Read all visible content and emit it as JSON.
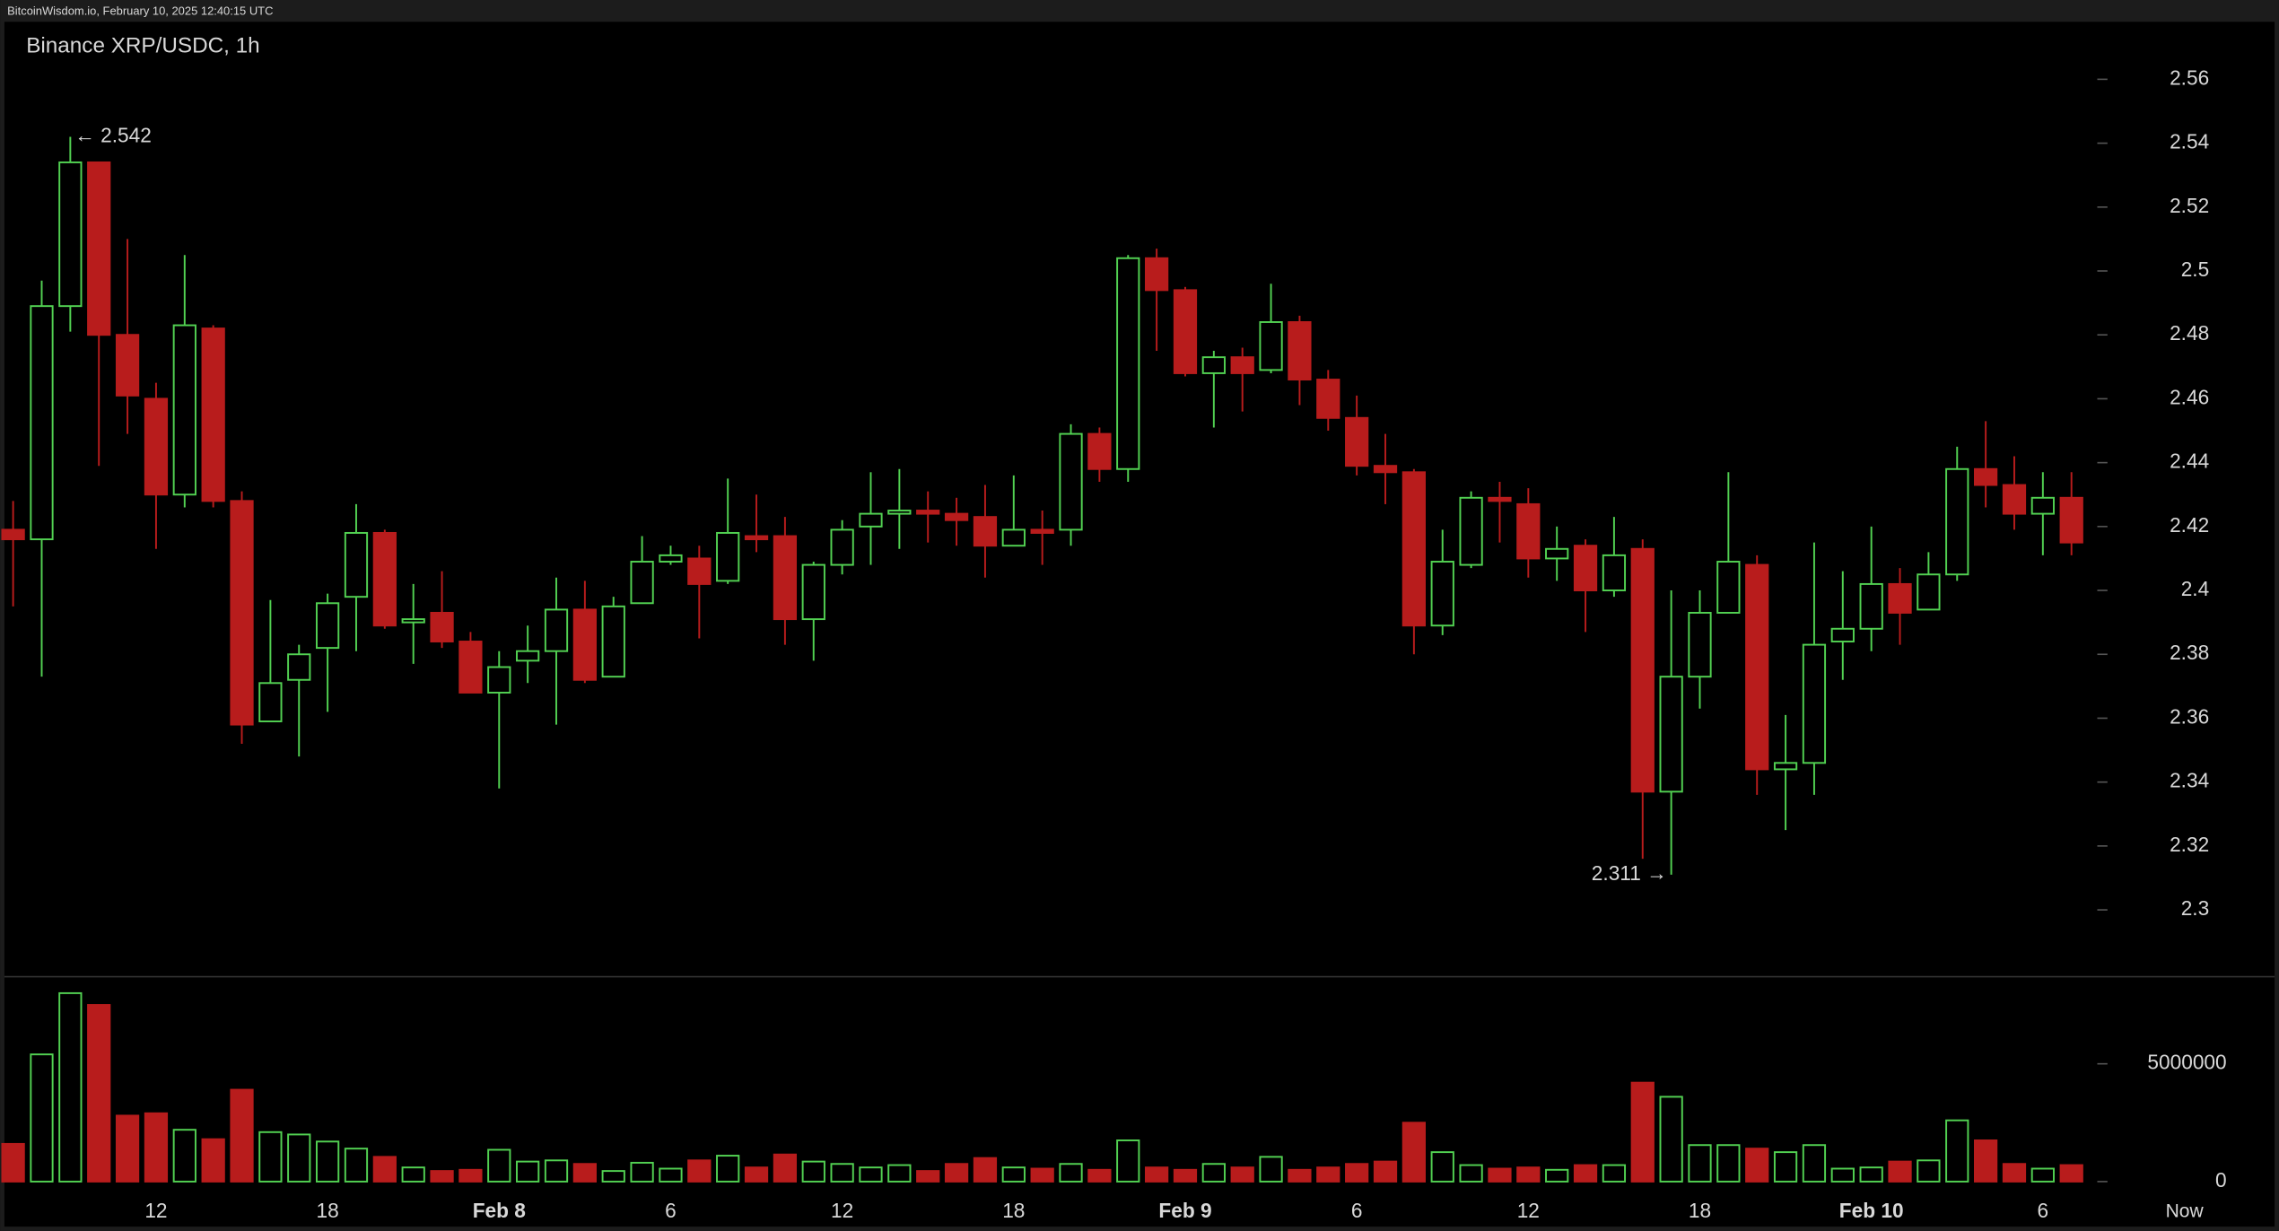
{
  "chart_data": {
    "type": "candlestick",
    "header": "BitcoinWisdom.io, February 10, 2025 12:40:15 UTC",
    "title": "Binance XRP/USDC, 1h",
    "categories": [
      null,
      null,
      null,
      null,
      null,
      "12",
      null,
      null,
      null,
      null,
      null,
      "18",
      null,
      null,
      null,
      null,
      null,
      "Feb 8",
      null,
      null,
      null,
      null,
      null,
      "6",
      null,
      null,
      null,
      null,
      null,
      "12",
      null,
      null,
      null,
      null,
      null,
      "18",
      null,
      null,
      null,
      null,
      null,
      "Feb 9",
      null,
      null,
      null,
      null,
      null,
      "6",
      null,
      null,
      null,
      null,
      null,
      "12",
      null,
      null,
      null,
      null,
      null,
      "18",
      null,
      null,
      null,
      null,
      null,
      "Feb 10",
      null,
      null,
      null,
      null,
      null,
      "6",
      null
    ],
    "now_label": "Now",
    "open": [
      2.419,
      2.416,
      2.489,
      2.534,
      2.48,
      2.46,
      2.43,
      2.482,
      2.428,
      2.359,
      2.372,
      2.382,
      2.398,
      2.418,
      2.39,
      2.393,
      2.384,
      2.368,
      2.378,
      2.381,
      2.394,
      2.373,
      2.396,
      2.409,
      2.41,
      2.403,
      2.417,
      2.417,
      2.391,
      2.408,
      2.42,
      2.424,
      2.425,
      2.424,
      2.423,
      2.414,
      2.419,
      2.419,
      2.449,
      2.438,
      2.504,
      2.494,
      2.468,
      2.473,
      2.469,
      2.484,
      2.466,
      2.454,
      2.439,
      2.437,
      2.389,
      2.408,
      2.429,
      2.427,
      2.41,
      2.414,
      2.4,
      2.413,
      2.337,
      2.373,
      2.393,
      2.408,
      2.344,
      2.346,
      2.384,
      2.388,
      2.402,
      2.394,
      2.405,
      2.438,
      2.433,
      2.424,
      2.429
    ],
    "high": [
      2.428,
      2.497,
      2.542,
      2.534,
      2.51,
      2.465,
      2.505,
      2.483,
      2.431,
      2.397,
      2.383,
      2.399,
      2.427,
      2.419,
      2.402,
      2.406,
      2.387,
      2.381,
      2.389,
      2.404,
      2.403,
      2.398,
      2.417,
      2.414,
      2.414,
      2.435,
      2.43,
      2.423,
      2.409,
      2.422,
      2.437,
      2.438,
      2.431,
      2.429,
      2.433,
      2.436,
      2.425,
      2.452,
      2.451,
      2.505,
      2.507,
      2.495,
      2.475,
      2.476,
      2.496,
      2.486,
      2.469,
      2.461,
      2.449,
      2.438,
      2.419,
      2.431,
      2.434,
      2.432,
      2.42,
      2.416,
      2.423,
      2.416,
      2.4,
      2.4,
      2.437,
      2.411,
      2.361,
      2.415,
      2.406,
      2.42,
      2.407,
      2.412,
      2.445,
      2.453,
      2.442,
      2.437,
      2.437
    ],
    "low": [
      2.395,
      2.373,
      2.481,
      2.439,
      2.449,
      2.413,
      2.426,
      2.426,
      2.352,
      2.359,
      2.348,
      2.362,
      2.381,
      2.388,
      2.377,
      2.382,
      2.368,
      2.338,
      2.371,
      2.358,
      2.371,
      2.373,
      2.396,
      2.408,
      2.385,
      2.402,
      2.412,
      2.383,
      2.378,
      2.405,
      2.408,
      2.413,
      2.415,
      2.414,
      2.404,
      2.414,
      2.408,
      2.414,
      2.434,
      2.434,
      2.475,
      2.467,
      2.451,
      2.456,
      2.468,
      2.458,
      2.45,
      2.436,
      2.427,
      2.38,
      2.386,
      2.407,
      2.415,
      2.404,
      2.403,
      2.387,
      2.398,
      2.316,
      2.311,
      2.363,
      2.393,
      2.336,
      2.325,
      2.336,
      2.372,
      2.381,
      2.383,
      2.394,
      2.403,
      2.426,
      2.419,
      2.411,
      2.411
    ],
    "close": [
      2.416,
      2.489,
      2.534,
      2.48,
      2.461,
      2.43,
      2.483,
      2.428,
      2.358,
      2.371,
      2.38,
      2.396,
      2.418,
      2.389,
      2.391,
      2.384,
      2.368,
      2.376,
      2.381,
      2.394,
      2.372,
      2.395,
      2.409,
      2.411,
      2.402,
      2.418,
      2.416,
      2.391,
      2.408,
      2.419,
      2.424,
      2.425,
      2.424,
      2.422,
      2.414,
      2.419,
      2.418,
      2.449,
      2.438,
      2.504,
      2.494,
      2.468,
      2.473,
      2.468,
      2.484,
      2.466,
      2.454,
      2.439,
      2.437,
      2.389,
      2.409,
      2.429,
      2.428,
      2.41,
      2.413,
      2.4,
      2.411,
      2.337,
      2.373,
      2.393,
      2.409,
      2.344,
      2.346,
      2.383,
      2.388,
      2.402,
      2.393,
      2.405,
      2.438,
      2.433,
      2.424,
      2.429,
      2.415
    ],
    "volume": [
      1600000,
      5400000,
      8000000,
      7500000,
      2800000,
      2900000,
      2200000,
      1800000,
      3900000,
      2100000,
      2000000,
      1700000,
      1400000,
      1050000,
      600000,
      450000,
      500000,
      1350000,
      850000,
      900000,
      750000,
      450000,
      800000,
      550000,
      900000,
      1100000,
      600000,
      1150000,
      850000,
      750000,
      600000,
      700000,
      450000,
      750000,
      1000000,
      600000,
      550000,
      750000,
      500000,
      1750000,
      600000,
      500000,
      750000,
      600000,
      1050000,
      500000,
      600000,
      750000,
      850000,
      2500000,
      1250000,
      700000,
      550000,
      600000,
      500000,
      700000,
      700000,
      4200000,
      3600000,
      1550000,
      1550000,
      1400000,
      1250000,
      1550000,
      550000,
      600000,
      850000,
      900000,
      2600000,
      1750000,
      750000,
      550000,
      700000
    ],
    "ylim": [
      2.28,
      2.578
    ],
    "yticks": [
      2.3,
      2.32,
      2.34,
      2.36,
      2.38,
      2.4,
      2.42,
      2.44,
      2.46,
      2.48,
      2.5,
      2.52,
      2.54,
      2.56
    ],
    "volume_ylim": [
      0,
      8700000
    ],
    "volume_yticks": [
      0,
      5000000
    ],
    "up_color": "#52d152",
    "down_color": "#b81c1c",
    "annotations": [
      {
        "value": 2.542,
        "label": "← 2.542"
      },
      {
        "value": 2.311,
        "label": "2.311 →"
      }
    ]
  }
}
